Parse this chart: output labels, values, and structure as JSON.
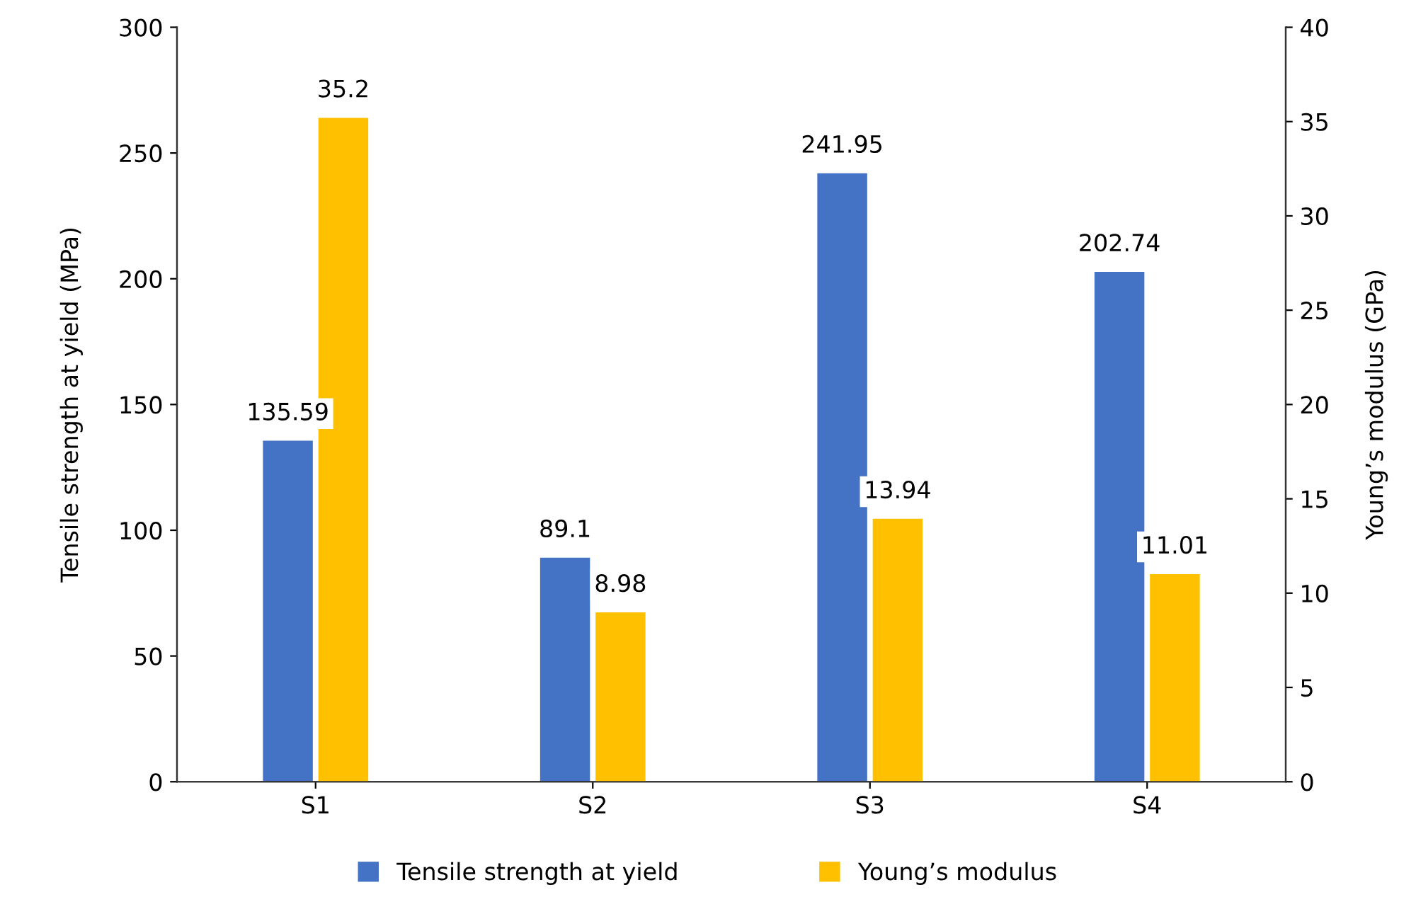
{
  "chart_data": {
    "type": "bar",
    "categories": [
      "S1",
      "S2",
      "S3",
      "S4"
    ],
    "series": [
      {
        "name": "Tensile strength at yield",
        "color": "#4472c4",
        "values": [
          135.59,
          89.1,
          241.95,
          202.74
        ]
      },
      {
        "name": "Young’s modulus",
        "color": "#ffc000",
        "values": [
          35.2,
          8.98,
          13.94,
          11.01
        ],
        "axis": "y2"
      }
    ],
    "ylabel": "Tensile strength at yield (MPa)",
    "y2label": "Young’s modulus (GPa)",
    "ylim": [
      0,
      300
    ],
    "yticks": [
      0,
      50,
      100,
      150,
      200,
      250,
      300
    ],
    "y2lim": [
      0,
      40
    ],
    "y2ticks": [
      0,
      5,
      10,
      15,
      20,
      25,
      30,
      35,
      40
    ],
    "data_labels": true,
    "legend": "bottom",
    "grid": false
  }
}
